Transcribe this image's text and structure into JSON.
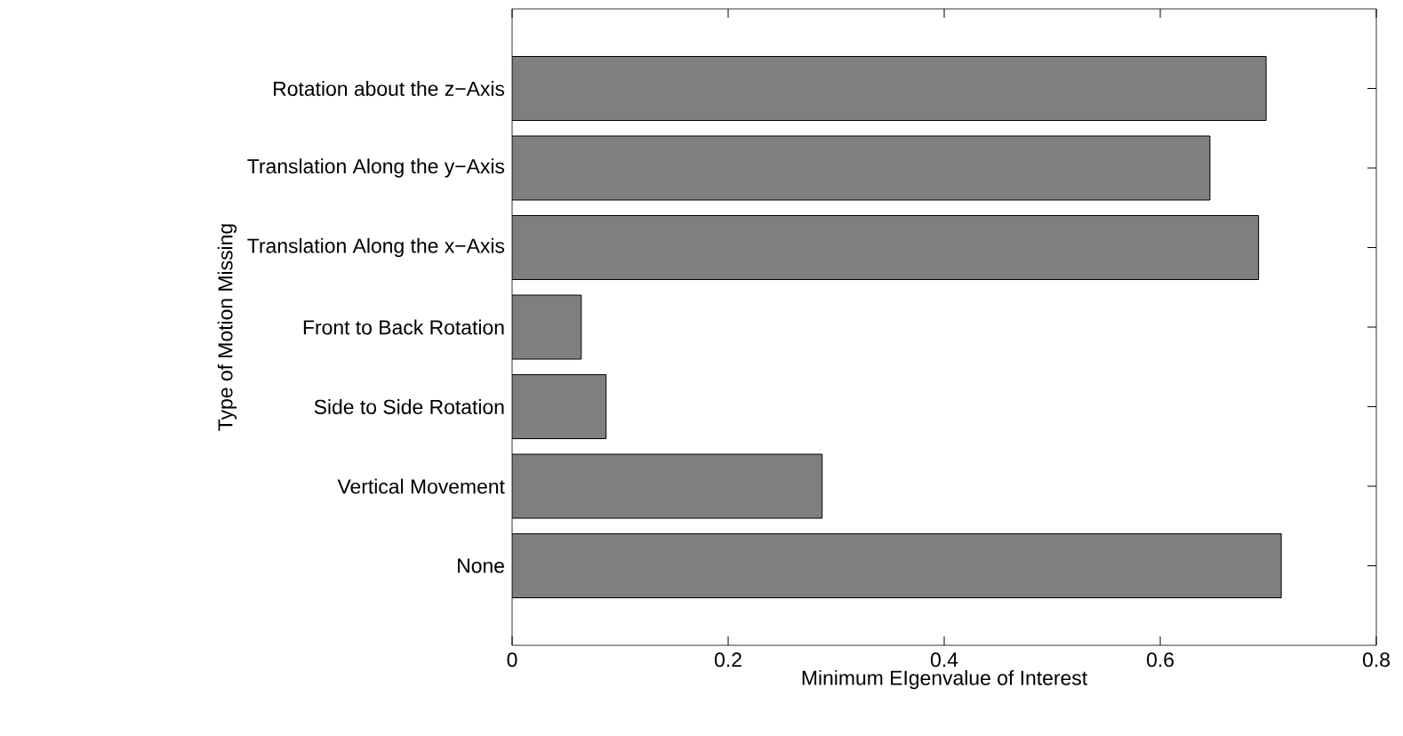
{
  "chart_data": {
    "type": "bar",
    "orientation": "horizontal",
    "categories": [
      "Rotation about the z−Axis",
      "Translation Along the y−Axis",
      "Translation Along the x−Axis",
      "Front to Back Rotation",
      "Side to Side Rotation",
      "Vertical Movement",
      "None"
    ],
    "values": [
      0.698,
      0.646,
      0.691,
      0.064,
      0.087,
      0.287,
      0.712
    ],
    "color": "#7f7f7f",
    "xlim": [
      0,
      0.8
    ],
    "xticks": [
      0,
      0.2,
      0.4,
      0.6,
      0.8
    ],
    "xlabel": "Minimum EIgenvalue of Interest",
    "ylabel": "Type of Motion Missing"
  }
}
